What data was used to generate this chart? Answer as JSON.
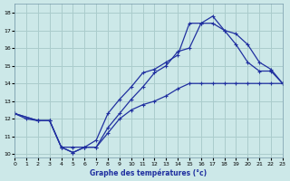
{
  "xlabel": "Graphe des températures (°c)",
  "bg_color": "#cce8e8",
  "line_color": "#2030a0",
  "grid_color": "#aacccc",
  "x_ticks": [
    0,
    1,
    2,
    3,
    4,
    5,
    6,
    7,
    8,
    9,
    10,
    11,
    12,
    13,
    14,
    15,
    16,
    17,
    18,
    19,
    20,
    21,
    22,
    23
  ],
  "y_ticks": [
    10,
    11,
    12,
    13,
    14,
    15,
    16,
    17,
    18
  ],
  "xlim": [
    0,
    23
  ],
  "ylim": [
    9.8,
    18.5
  ],
  "line1_x": [
    0,
    1,
    2,
    3,
    4,
    5,
    6,
    7,
    8,
    9,
    10,
    11,
    12,
    13,
    14,
    15,
    16,
    17,
    18,
    19,
    20,
    21,
    22,
    23
  ],
  "line1_y": [
    12.3,
    12.0,
    11.9,
    11.9,
    10.4,
    10.1,
    10.4,
    10.4,
    11.2,
    12.0,
    12.5,
    12.8,
    13.0,
    13.3,
    13.7,
    14.0,
    14.0,
    14.0,
    14.0,
    14.0,
    14.0,
    14.0,
    14.0,
    14.0
  ],
  "line2_x": [
    0,
    2,
    3,
    4,
    5,
    6,
    7,
    8,
    9,
    10,
    11,
    12,
    13,
    14,
    15,
    16,
    17,
    18,
    19,
    20,
    21,
    22,
    23
  ],
  "line2_y": [
    12.3,
    11.9,
    11.9,
    10.4,
    10.4,
    10.4,
    10.8,
    12.3,
    13.1,
    13.8,
    14.6,
    14.8,
    15.2,
    15.6,
    17.4,
    17.4,
    17.8,
    17.0,
    16.2,
    15.2,
    14.7,
    14.7,
    14.0
  ],
  "line3_x": [
    0,
    2,
    3,
    4,
    5,
    6,
    7,
    8,
    9,
    10,
    11,
    12,
    13,
    14,
    15,
    16,
    17,
    18,
    19,
    20,
    21,
    22,
    23
  ],
  "line3_y": [
    12.3,
    11.9,
    11.9,
    10.4,
    10.1,
    10.4,
    10.4,
    11.5,
    12.3,
    13.1,
    13.8,
    14.6,
    15.0,
    15.8,
    16.0,
    17.4,
    17.4,
    17.0,
    16.8,
    16.2,
    15.2,
    14.8,
    14.0
  ]
}
